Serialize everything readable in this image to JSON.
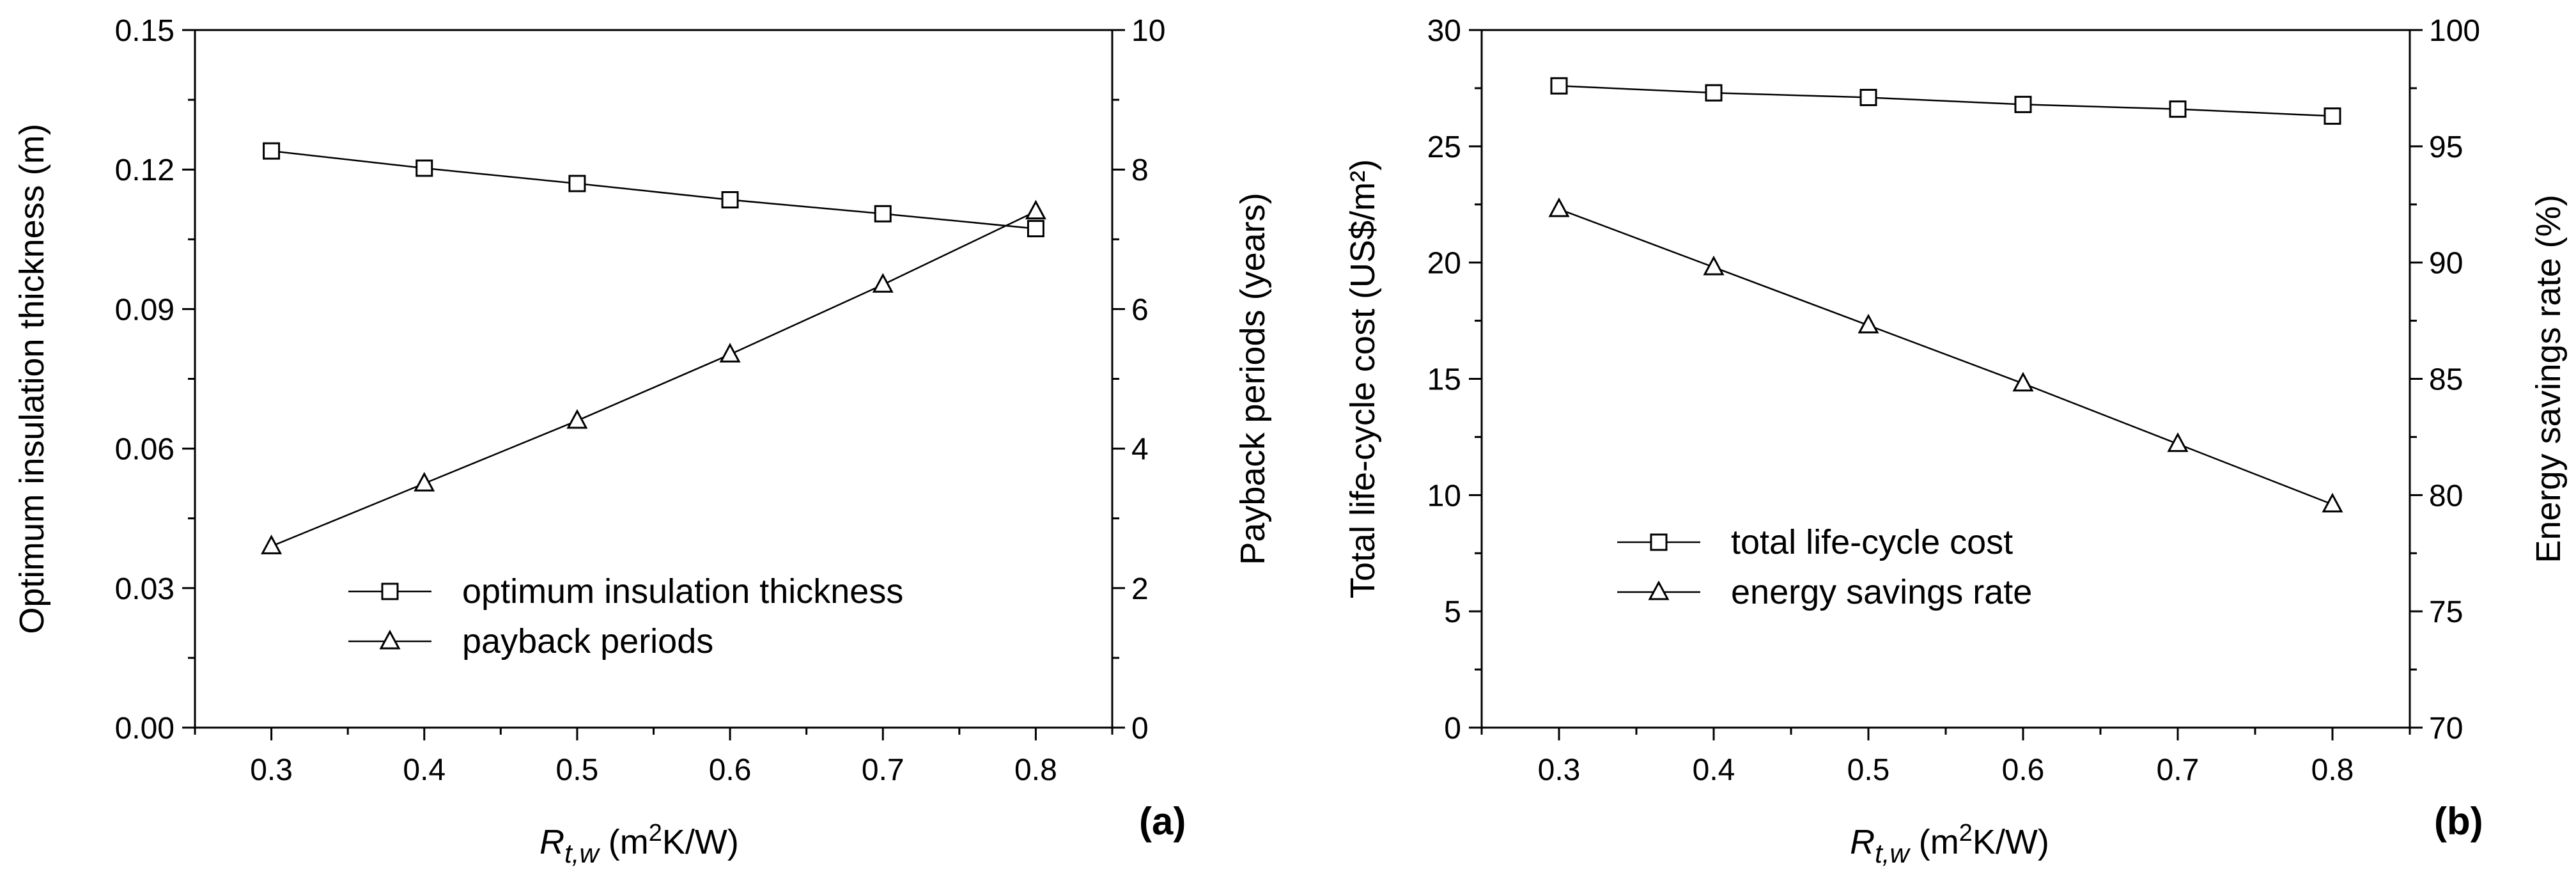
{
  "chart_data": [
    {
      "type": "line",
      "panel_label": "(a)",
      "x": [
        0.3,
        0.4,
        0.5,
        0.6,
        0.7,
        0.8
      ],
      "xlim": [
        0.25,
        0.85
      ],
      "xticks": [
        "0.3",
        "0.4",
        "0.5",
        "0.6",
        "0.7",
        "0.8"
      ],
      "xlabel": {
        "main": "R",
        "sub": "t,w",
        "unit_open": " (m",
        "unit_sup": "2",
        "unit_close": "K/W)"
      },
      "ylabel_left": "Optimum insulation thickness (m)",
      "ylim_left": [
        0,
        0.15
      ],
      "yticks_left": [
        "0.00",
        "0.03",
        "0.06",
        "0.09",
        "0.12",
        "0.15"
      ],
      "ylabel_right": "Payback periods (years)",
      "ylim_right": [
        0,
        10
      ],
      "yticks_right": [
        "0",
        "2",
        "4",
        "6",
        "8",
        "10"
      ],
      "series": [
        {
          "name": "optimum insulation thickness",
          "marker": "square",
          "axis": "left",
          "values": [
            0.124,
            0.1203,
            0.117,
            0.1135,
            0.1105,
            0.1073
          ]
        },
        {
          "name": "payback periods",
          "marker": "triangle",
          "axis": "right",
          "values": [
            2.6,
            3.5,
            4.4,
            5.35,
            6.35,
            7.4
          ]
        }
      ]
    },
    {
      "type": "line",
      "panel_label": "(b)",
      "x": [
        0.3,
        0.4,
        0.5,
        0.6,
        0.7,
        0.8
      ],
      "xlim": [
        0.25,
        0.85
      ],
      "xticks": [
        "0.3",
        "0.4",
        "0.5",
        "0.6",
        "0.7",
        "0.8"
      ],
      "xlabel": {
        "main": "R",
        "sub": "t,w",
        "unit_open": " (m",
        "unit_sup": "2",
        "unit_close": "K/W)"
      },
      "ylabel_left": "Total life-cycle cost (US$/m²)",
      "ylim_left": [
        0,
        30
      ],
      "yticks_left": [
        "0",
        "5",
        "10",
        "15",
        "20",
        "25",
        "30"
      ],
      "ylabel_right": "Energy savings rate (%)",
      "ylim_right": [
        70,
        100
      ],
      "yticks_right": [
        "70",
        "75",
        "80",
        "85",
        "90",
        "95",
        "100"
      ],
      "series": [
        {
          "name": "total life-cycle cost",
          "marker": "square",
          "axis": "left",
          "values": [
            27.6,
            27.3,
            27.1,
            26.8,
            26.6,
            26.3
          ]
        },
        {
          "name": "energy savings rate",
          "marker": "triangle",
          "axis": "right",
          "values": [
            92.3,
            89.8,
            87.3,
            84.8,
            82.2,
            79.6
          ]
        }
      ]
    }
  ]
}
